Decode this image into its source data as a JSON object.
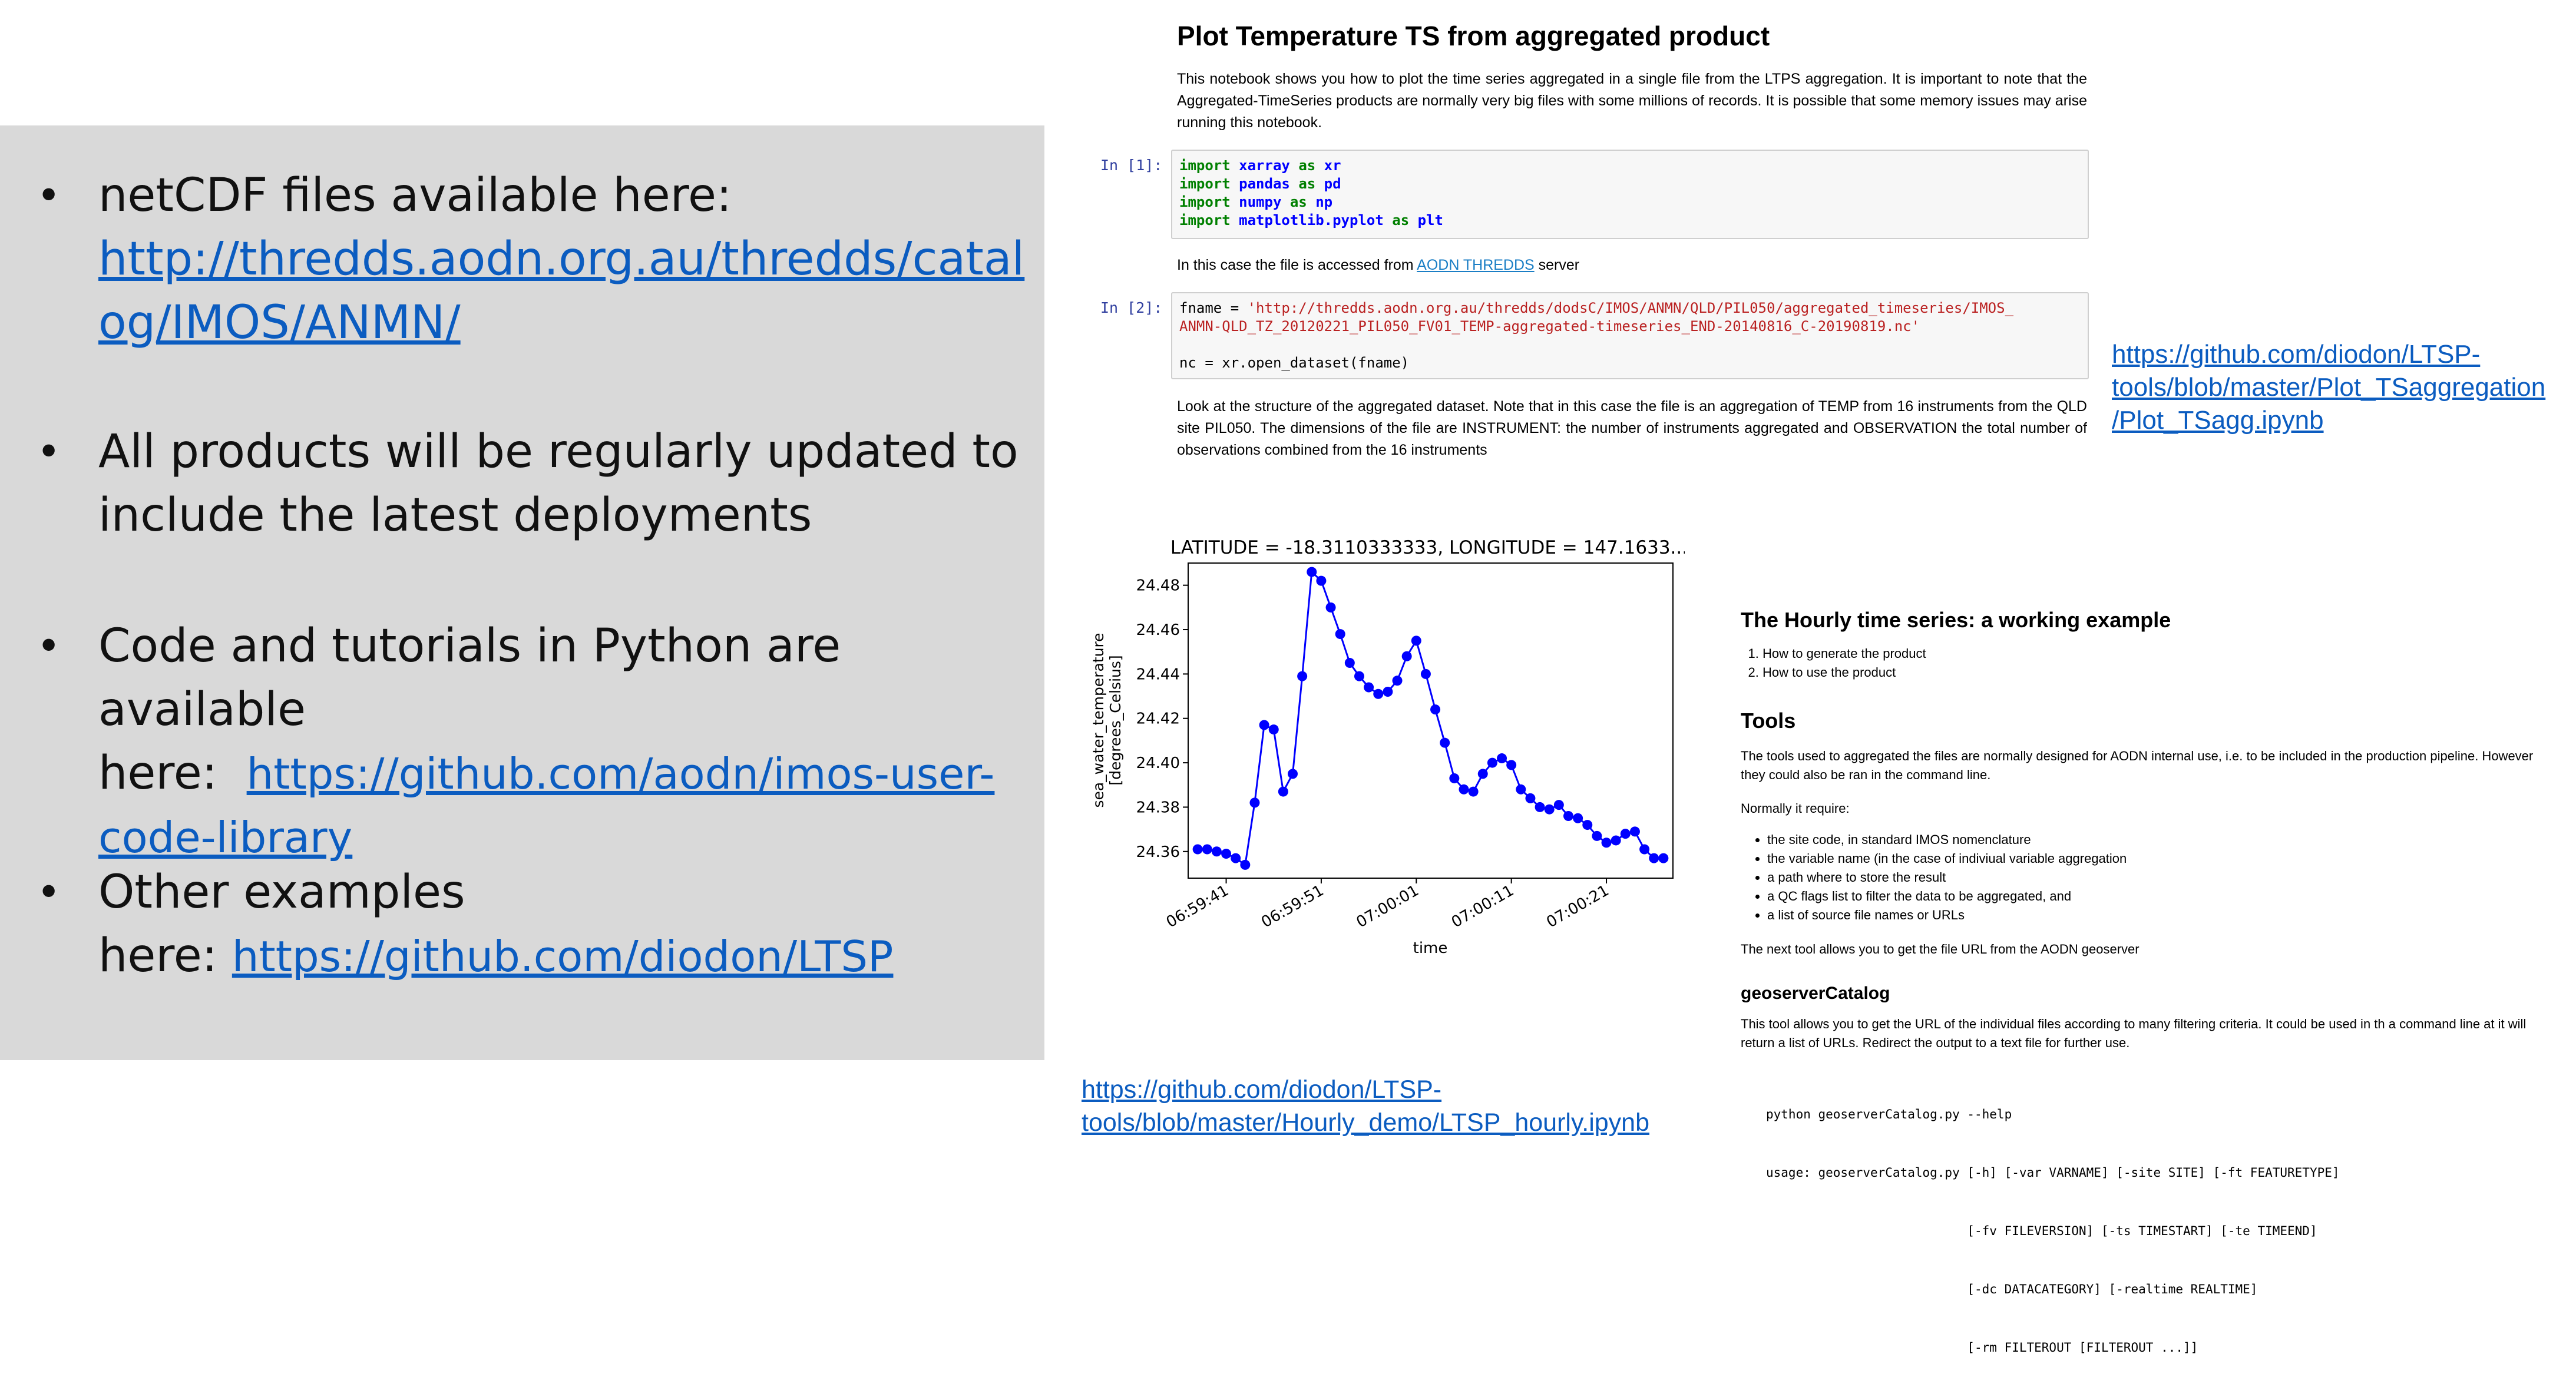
{
  "left": {
    "bullets": [
      {
        "text": "netCDF files available here:",
        "link": "http://thredds.aodn.org.au/thredds/catalog/IMOS/ANMN/"
      },
      {
        "text": "All products will be regularly updated to include the latest deployments"
      },
      {
        "text": "Code and tutorials in Python are available here:",
        "link": "https://github.com/aodn/imos-user-code-library"
      },
      {
        "text": "Other examples here:",
        "link": "https://github.com/diodon/LTSP"
      }
    ],
    "link1_line1": "http://thredds.aodn.org.au/thredds/catal",
    "link1_line2": "og/IMOS/ANMN/",
    "bullet2_line1": "All products will be regularly updated to",
    "bullet2_line2": "include the latest deployments",
    "bullet3_line1": "Code and tutorials in Python are available",
    "bullet3_line2a": "here:",
    "link3_line1": "https://github.com/aodn/imos-user-",
    "link3_line2": "code-library",
    "bullet4_line1": "Other examples",
    "bullet4_line2a": "here:"
  },
  "notebook": {
    "title": "Plot Temperature TS from aggregated product",
    "intro": "This notebook shows you how to plot the time series aggregated in a single file from the LTPS aggregation. It is important to note that the Aggregated-TimeSeries products are normally very big files with some millions of records. It is possible that some memory issues may arise running this notebook.",
    "cell1_prompt": "In [1]:",
    "cell1_lines": [
      {
        "kw": "import",
        "mod": "xarray",
        "as": "as",
        "alias": "xr"
      },
      {
        "kw": "import",
        "mod": "pandas",
        "as": "as",
        "alias": "pd"
      },
      {
        "kw": "import",
        "mod": "numpy",
        "as": "as",
        "alias": "np"
      },
      {
        "kw": "import",
        "mod": "matplotlib.pyplot",
        "as": "as",
        "alias": "plt"
      }
    ],
    "access_text": "In this case the file is accessed from",
    "access_link": "AODN THREDDS",
    "access_suffix": "server",
    "cell2_prompt": "In [2]:",
    "cell2_assign": "fname = ",
    "cell2_str1": "'http://thredds.aodn.org.au/thredds/dodsC/IMOS/ANMN/QLD/PIL050/aggregated_timeseries/IMOS_",
    "cell2_str2": "ANMN-QLD_TZ_20120221_PIL050_FV01_TEMP-aggregated-timeseries_END-20140816_C-20190819.nc'",
    "cell2_line3": "nc = xr.open_dataset(fname)",
    "structure_text": "Look at the structure of the aggregated dataset. Note that in this case the file is an aggregation of TEMP from 16 instruments from the QLD site PIL050. The dimensions of the file are INSTRUMENT: the number of instruments aggregated and OBSERVATION the total number of observations combined from the 16 instruments",
    "right_link_line1": "https://github.com/diodon/LTSP-",
    "right_link_line2": "tools/blob/master/Plot_TSaggregation",
    "right_link_line3": "/Plot_TSagg.ipynb"
  },
  "chart_data": {
    "type": "line",
    "title": "LATITUDE = -18.3110333333, LONGITUDE = 147.1633...",
    "xlabel": "time",
    "ylabel_line1": "sea_water_temperature",
    "ylabel_line2": "[degrees_Celsius]",
    "ylim": [
      24.348,
      24.49
    ],
    "xlim": [
      0,
      51
    ],
    "y_ticks": [
      24.36,
      24.38,
      24.4,
      24.42,
      24.44,
      24.46,
      24.48
    ],
    "y_tick_labels": [
      "24.36",
      "24.38",
      "24.40",
      "24.42",
      "24.44",
      "24.46",
      "24.48"
    ],
    "x_ticks": [
      4,
      14,
      24,
      34,
      44
    ],
    "x_tick_labels": [
      "06:59:41",
      "06:59:51",
      "07:00:01",
      "07:00:11",
      "07:00:21"
    ],
    "grid": false,
    "color": "#0000ff",
    "values": [
      24.361,
      24.361,
      24.36,
      24.359,
      24.357,
      24.354,
      24.382,
      24.417,
      24.415,
      24.387,
      24.395,
      24.439,
      24.486,
      24.482,
      24.47,
      24.458,
      24.445,
      24.439,
      24.434,
      24.431,
      24.432,
      24.437,
      24.448,
      24.455,
      24.44,
      24.424,
      24.409,
      24.393,
      24.388,
      24.387,
      24.395,
      24.4,
      24.402,
      24.399,
      24.388,
      24.384,
      24.38,
      24.379,
      24.381,
      24.376,
      24.375,
      24.372,
      24.367,
      24.364,
      24.365,
      24.368,
      24.369,
      24.361,
      24.357,
      24.357
    ]
  },
  "hourly_link": {
    "line1": "https://github.com/diodon/LTSP-",
    "line2": "tools/blob/master/Hourly_demo/LTSP_hourly.ipynb"
  },
  "example": {
    "title": "The Hourly time series: a working example",
    "steps": [
      "How to generate the product",
      "How to use the product"
    ],
    "tools_heading": "Tools",
    "tools_text": "The tools used to aggregated the files are normally designed for AODN internal use, i.e. to be included in the production pipeline. However they could also be ran in the command line.",
    "requires_text": "Normally it require:",
    "requirements": [
      "the site code, in standard IMOS nomenclature",
      "the variable name (in the case of indiviual variable aggregation",
      "a path where to store the result",
      "a QC flags list to filter the data to be aggregated, and",
      "a list of source file names or URLs"
    ],
    "next_tool_text": "The next tool allows you to get the file URL from the AODN geoserver",
    "geo_heading": "geoserverCatalog",
    "geo_text": "This tool allows you to get the URL of the individual files according to many filtering criteria. It could be used in th a command line at it will return a list of URLs. Redirect the output to a text file for further use.",
    "code_lines": [
      "python geoserverCatalog.py --help",
      "usage: geoserverCatalog.py [-h] [-var VARNAME] [-site SITE] [-ft FEATURETYPE]",
      "                           [-fv FILEVERSION] [-ts TIMESTART] [-te TIMEEND]",
      "                           [-dc DATACATEGORY] [-realtime REALTIME]",
      "                           [-rm FILTEROUT [FILTEROUT ...]]"
    ]
  }
}
